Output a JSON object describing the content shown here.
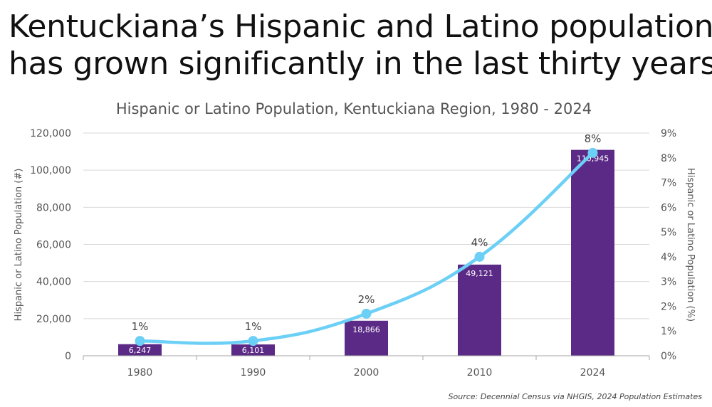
{
  "headline": {
    "line1": "Kentuckiana’s Hispanic and Latino population",
    "line2": "has grown significantly in the last thirty years."
  },
  "chart_data": {
    "type": "bar",
    "title": "Hispanic or Latino Population, Kentuckiana Region, 1980 - 2024",
    "categories": [
      "1980",
      "1990",
      "2000",
      "2010",
      "2024"
    ],
    "series": [
      {
        "name": "Hispanic or Latino Population (#)",
        "type": "bar",
        "axis": "left",
        "values": [
          6247,
          6101,
          18866,
          49121,
          110945
        ],
        "labels": [
          "6,247",
          "6,101",
          "18,866",
          "49,121",
          "110,945"
        ],
        "color": "#5b2a86"
      },
      {
        "name": "Hispanic or Latino Population (%)",
        "type": "line",
        "axis": "right",
        "values": [
          0.6,
          0.6,
          1.7,
          4.0,
          8.2
        ],
        "labels": [
          "1%",
          "1%",
          "2%",
          "4%",
          "8%"
        ],
        "color": "#6ccff6"
      }
    ],
    "ylabel": "Hispanic or Latino Population (#)",
    "ylabel_right": "Hispanic or Latino Population (%)",
    "ylim": [
      0,
      120000
    ],
    "ylim_right": [
      0,
      9
    ],
    "yticks": [
      "0",
      "20,000",
      "40,000",
      "60,000",
      "80,000",
      "100,000",
      "120,000"
    ],
    "yticks_right": [
      "0%",
      "1%",
      "2%",
      "3%",
      "4%",
      "5%",
      "6%",
      "7%",
      "8%",
      "9%"
    ],
    "grid": true
  },
  "source": "Source: Decennial Census via NHGIS, 2024 Population Estimates"
}
